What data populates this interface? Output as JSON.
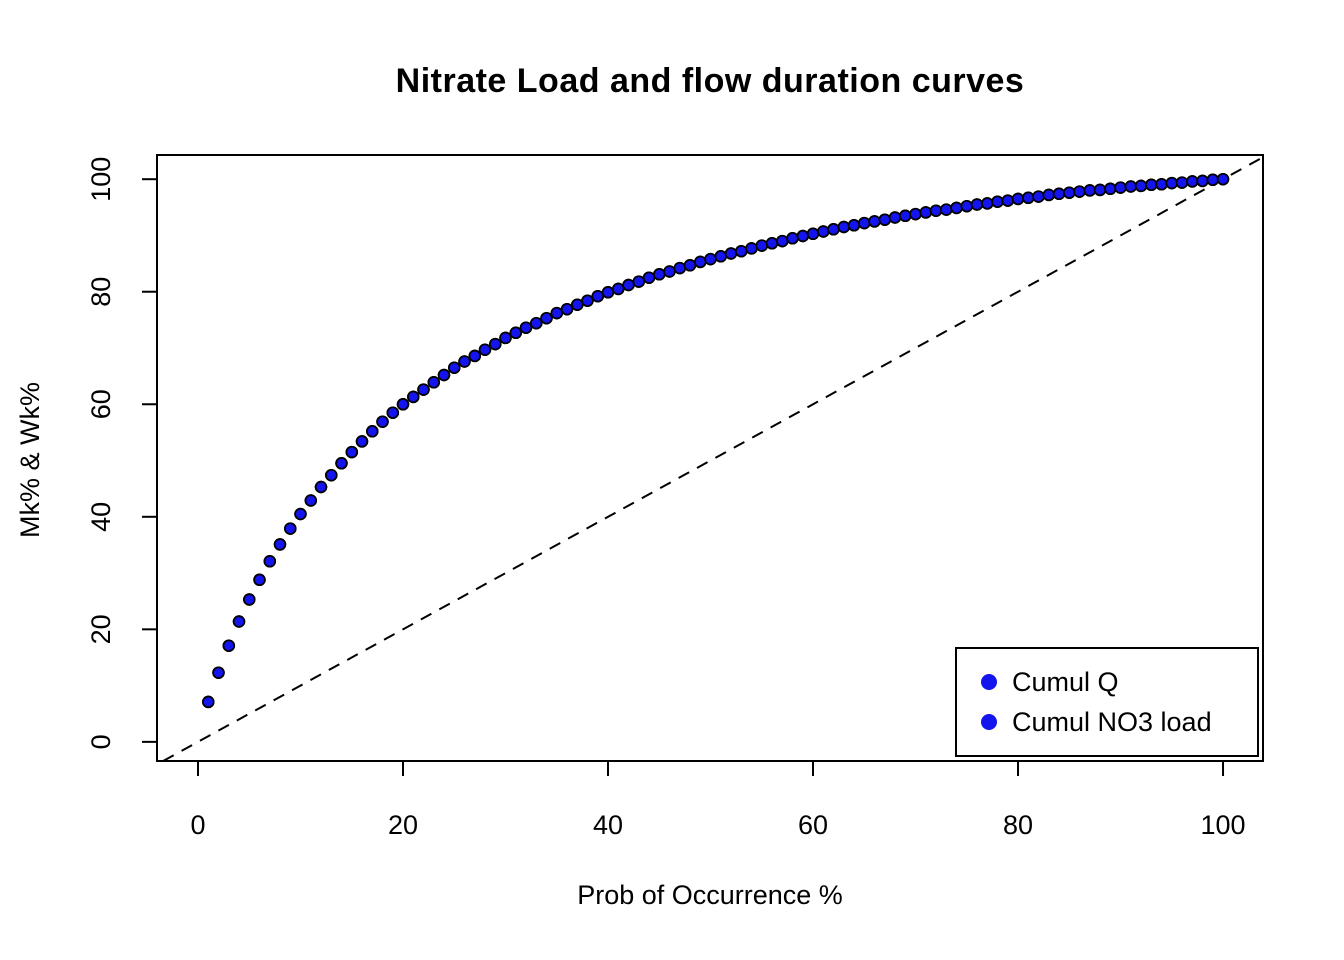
{
  "chart_data": {
    "type": "scatter",
    "title": "Nitrate Load and flow duration curves",
    "xlabel": "Prob of Occurrence %",
    "ylabel": "Mk% & Wk%",
    "xlim": [
      -4.0,
      103.9
    ],
    "ylim": [
      -3.4,
      104.3
    ],
    "x_ticks": [
      0,
      20,
      40,
      60,
      80,
      100
    ],
    "y_ticks": [
      0,
      20,
      40,
      60,
      80,
      100
    ],
    "grid": false,
    "legend_position": "bottom-right",
    "colors": {
      "point_fill": "#1414EE",
      "point_stroke": "#000000",
      "identity_line": "#000000",
      "axis": "#000000"
    },
    "identity_line": {
      "slope": 1,
      "intercept": 0,
      "style": "dashed"
    },
    "x": [
      1,
      2,
      3,
      4,
      5,
      6,
      7,
      8,
      9,
      10,
      11,
      12,
      13,
      14,
      15,
      16,
      17,
      18,
      19,
      20,
      21,
      22,
      23,
      24,
      25,
      26,
      27,
      28,
      29,
      30,
      31,
      32,
      33,
      34,
      35,
      36,
      37,
      38,
      39,
      40,
      41,
      42,
      43,
      44,
      45,
      46,
      47,
      48,
      49,
      50,
      51,
      52,
      53,
      54,
      55,
      56,
      57,
      58,
      59,
      60,
      61,
      62,
      63,
      64,
      65,
      66,
      67,
      68,
      69,
      70,
      71,
      72,
      73,
      74,
      75,
      76,
      77,
      78,
      79,
      80,
      81,
      82,
      83,
      84,
      85,
      86,
      87,
      88,
      89,
      90,
      91,
      92,
      93,
      94,
      95,
      96,
      97,
      98,
      99,
      100
    ],
    "series": [
      {
        "name": "Cumul Q",
        "color": "#1414EE",
        "values": [
          7.1,
          12.3,
          17.1,
          21.4,
          25.3,
          28.8,
          32.1,
          35.1,
          37.9,
          40.5,
          42.9,
          45.3,
          47.4,
          49.5,
          51.5,
          53.4,
          55.2,
          56.9,
          58.5,
          60,
          61.3,
          62.6,
          63.9,
          65.2,
          66.5,
          67.6,
          68.6,
          69.7,
          70.7,
          71.8,
          72.7,
          73.6,
          74.4,
          75.3,
          76.2,
          76.9,
          77.7,
          78.4,
          79.2,
          79.9,
          80.5,
          81.2,
          81.8,
          82.5,
          83.1,
          83.6,
          84.2,
          84.7,
          85.3,
          85.8,
          86.3,
          86.8,
          87.2,
          87.7,
          88.2,
          88.6,
          89,
          89.5,
          89.9,
          90.3,
          90.7,
          91.1,
          91.5,
          91.8,
          92.2,
          92.5,
          92.8,
          93.2,
          93.5,
          93.8,
          94.1,
          94.4,
          94.6,
          94.9,
          95.2,
          95.5,
          95.7,
          96,
          96.2,
          96.5,
          96.7,
          96.9,
          97.2,
          97.4,
          97.6,
          97.8,
          98,
          98.1,
          98.3,
          98.5,
          98.7,
          98.8,
          99,
          99.1,
          99.3,
          99.4,
          99.6,
          99.7,
          99.9,
          100
        ]
      },
      {
        "name": "Cumul NO3 load",
        "color": "#1414EE",
        "values": [
          7.1,
          12.3,
          17.1,
          21.4,
          25.3,
          28.8,
          32.1,
          35.1,
          37.9,
          40.5,
          42.9,
          45.3,
          47.4,
          49.5,
          51.5,
          53.4,
          55.2,
          56.9,
          58.5,
          60,
          61.3,
          62.6,
          63.9,
          65.2,
          66.5,
          67.6,
          68.6,
          69.7,
          70.7,
          71.8,
          72.7,
          73.6,
          74.4,
          75.3,
          76.2,
          76.9,
          77.7,
          78.4,
          79.2,
          79.9,
          80.5,
          81.2,
          81.8,
          82.5,
          83.1,
          83.6,
          84.2,
          84.7,
          85.3,
          85.8,
          86.3,
          86.8,
          87.2,
          87.7,
          88.2,
          88.6,
          89,
          89.5,
          89.9,
          90.3,
          90.7,
          91.1,
          91.5,
          91.8,
          92.2,
          92.5,
          92.8,
          93.2,
          93.5,
          93.8,
          94.1,
          94.4,
          94.6,
          94.9,
          95.2,
          95.5,
          95.7,
          96,
          96.2,
          96.5,
          96.7,
          96.9,
          97.2,
          97.4,
          97.6,
          97.8,
          98,
          98.1,
          98.3,
          98.5,
          98.7,
          98.8,
          99,
          99.1,
          99.3,
          99.4,
          99.6,
          99.7,
          99.9,
          100
        ]
      }
    ]
  }
}
